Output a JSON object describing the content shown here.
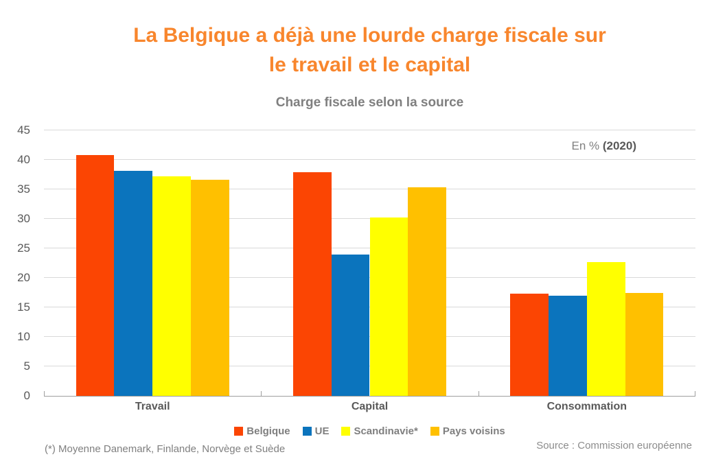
{
  "header": {
    "title_line1": "La Belgique a déjà une lourde charge fiscale sur",
    "title_line2": "le travail et le capital",
    "subtitle": "Charge fiscale selon la source"
  },
  "annotation": {
    "prefix": "En % ",
    "bold": "(2020)"
  },
  "footnote": "(*) Moyenne Danemark, Finlande, Norvège et Suède",
  "source": "Source : Commission européenne",
  "style": {
    "title_color": "#F8862D",
    "text_gray": "#7F7F7F",
    "axis_text_gray": "#595959",
    "gridline_color": "#D9D9D9",
    "axis_line_color": "#9E9E9E"
  },
  "chart_data": {
    "type": "bar",
    "title": "Charge fiscale selon la source",
    "unit_label": "En % (2020)",
    "categories": [
      "Travail",
      "Capital",
      "Consommation"
    ],
    "series": [
      {
        "name": "Belgique",
        "color": "#FB4503",
        "values": [
          40.8,
          37.9,
          17.3
        ]
      },
      {
        "name": "UE",
        "color": "#0B74BD",
        "values": [
          38.1,
          23.9,
          17.0
        ]
      },
      {
        "name": "Scandinavie*",
        "color": "#FFFF00",
        "values": [
          37.2,
          30.2,
          22.7
        ]
      },
      {
        "name": "Pays voisins",
        "color": "#FFC000",
        "values": [
          36.6,
          35.3,
          17.5
        ]
      }
    ],
    "xlabel": "",
    "ylabel": "",
    "ylim": [
      0,
      45
    ],
    "ytick_step": 5,
    "grid": true,
    "legend_position": "bottom"
  }
}
